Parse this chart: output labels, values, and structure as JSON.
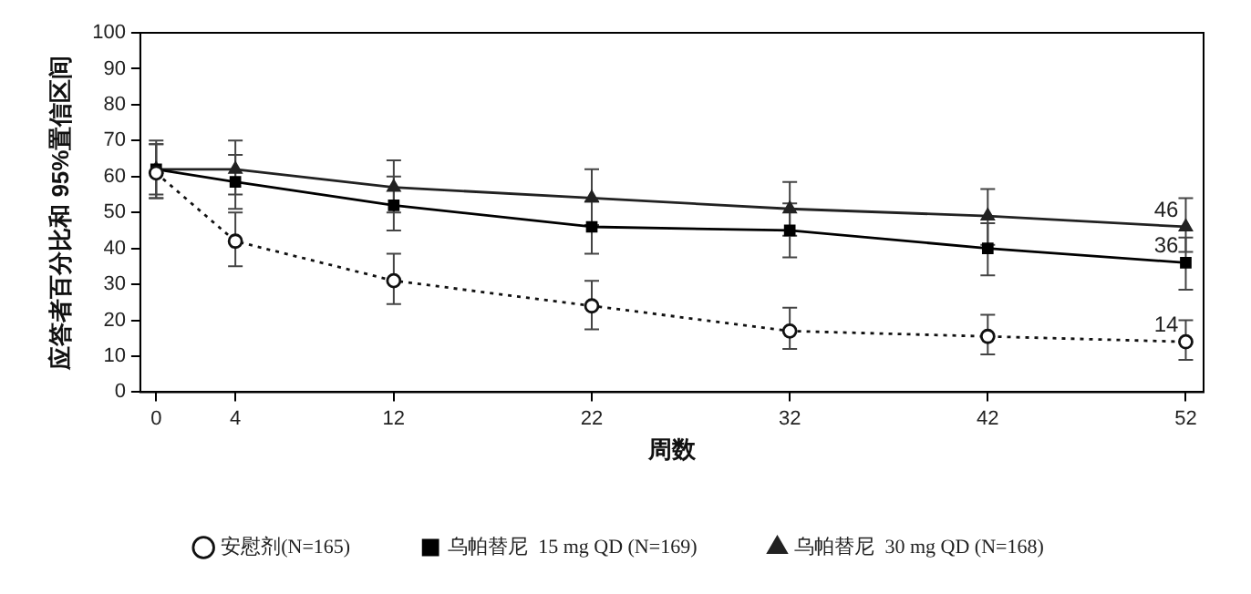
{
  "chart_data": {
    "type": "line",
    "xlabel": "周数",
    "ylabel": "应答者百分比和 95%置信区间",
    "x": [
      0,
      4,
      12,
      22,
      32,
      42,
      52
    ],
    "xlim": [
      -0.8,
      52.9
    ],
    "xticks": [
      0,
      4,
      12,
      22,
      32,
      42,
      52
    ],
    "ylim": [
      0,
      100
    ],
    "yticks": [
      0,
      10,
      20,
      30,
      40,
      50,
      60,
      70,
      80,
      90,
      100
    ],
    "grid": false,
    "legend": "bottom",
    "series": [
      {
        "name": "安慰剂(N=165)",
        "color": "#111111",
        "marker": "circle",
        "line_style": "dotted",
        "values": [
          61,
          42,
          31,
          24,
          17,
          15.5,
          14
        ],
        "errors": [
          [
            54,
            69
          ],
          [
            35,
            50
          ],
          [
            24.5,
            38.5
          ],
          [
            17.5,
            31
          ],
          [
            12,
            23.5
          ],
          [
            10.5,
            21.5
          ],
          [
            9,
            20
          ]
        ],
        "value_labels": [
          null,
          null,
          null,
          null,
          null,
          null,
          "14"
        ]
      },
      {
        "name": "乌帕替尼  15 mg QD (N=169)",
        "color": "#000000",
        "marker": "square",
        "line_style": "solid",
        "values": [
          62,
          58.5,
          52,
          46,
          45,
          40,
          36
        ],
        "errors": [
          [
            55,
            69
          ],
          [
            51,
            66
          ],
          [
            45,
            60
          ],
          [
            38.5,
            53
          ],
          [
            37.5,
            52.5
          ],
          [
            32.5,
            47
          ],
          [
            28.5,
            43
          ]
        ],
        "value_labels": [
          null,
          null,
          null,
          null,
          null,
          null,
          "36"
        ]
      },
      {
        "name": "乌帕替尼  30 mg QD (N=168)",
        "color": "#222222",
        "marker": "triangle",
        "line_style": "solid",
        "values": [
          62,
          62,
          57,
          54,
          51,
          49,
          46
        ],
        "errors": [
          [
            54,
            70
          ],
          [
            55,
            70
          ],
          [
            50,
            64.5
          ],
          [
            46.5,
            62
          ],
          [
            43.5,
            58.5
          ],
          [
            41,
            56.5
          ],
          [
            39,
            54
          ]
        ],
        "value_labels": [
          null,
          null,
          null,
          null,
          null,
          null,
          "46"
        ]
      }
    ]
  }
}
